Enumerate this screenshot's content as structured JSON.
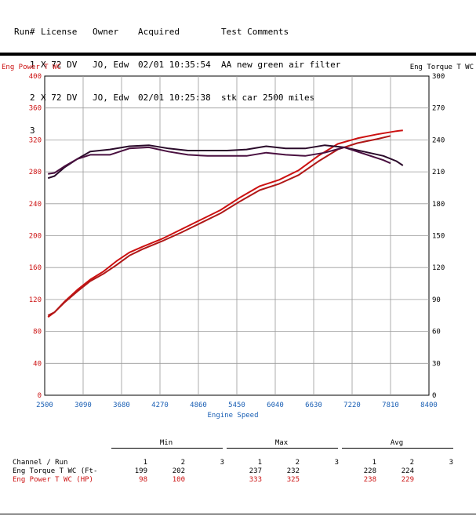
{
  "run_table": {
    "headers": {
      "run": "Run#",
      "license": "License",
      "owner": "Owner",
      "acquired": "Acquired",
      "comments": "Test Comments"
    },
    "rows": [
      {
        "run": "1",
        "license": "X 72 DV",
        "owner": "JO, Edw",
        "acquired": "02/01 10:35:54",
        "comments": "AA new green air filter"
      },
      {
        "run": "2",
        "license": "X 72 DV",
        "owner": "JO, Edw",
        "acquired": "02/01 10:25:38",
        "comments": "stk car 2500 miles"
      },
      {
        "run": "3",
        "license": "",
        "owner": "",
        "acquired": "",
        "comments": ""
      }
    ]
  },
  "colors": {
    "power": "#cc1111",
    "power2": "#b01818",
    "torque": "#2a0a2a",
    "torque2": "#4a1040",
    "axis_blue": "#1a5fb4"
  },
  "chart_data": {
    "type": "line",
    "left_axis_label": "Eng Power T WC",
    "right_axis_label": "Eng Torque T WC",
    "xlabel": "Engine Speed",
    "xlim": [
      2500,
      8400
    ],
    "x_ticks": [
      2500,
      3090,
      3680,
      4270,
      4860,
      5450,
      6040,
      6630,
      7220,
      7810,
      8400
    ],
    "ylim_left": [
      0,
      400
    ],
    "y_ticks_left": [
      0,
      40,
      80,
      120,
      160,
      200,
      240,
      280,
      320,
      360,
      400
    ],
    "ylim_right": [
      0,
      300
    ],
    "y_ticks_right": [
      0,
      30,
      60,
      90,
      120,
      150,
      180,
      210,
      240,
      270,
      300
    ],
    "series": [
      {
        "axis": "left",
        "color": "#cc1111",
        "x": [
          2550,
          2650,
          2800,
          3000,
          3200,
          3400,
          3600,
          3800,
          4000,
          4300,
          4600,
          4900,
          5200,
          5500,
          5800,
          6100,
          6400,
          6700,
          7000,
          7300,
          7600,
          7900,
          8000
        ],
        "y": [
          98,
          104,
          117,
          132,
          145,
          155,
          168,
          179,
          186,
          196,
          208,
          220,
          232,
          248,
          262,
          270,
          282,
          300,
          315,
          322,
          327,
          331,
          332
        ]
      },
      {
        "axis": "left",
        "color": "#b01818",
        "x": [
          2550,
          2650,
          2800,
          3000,
          3200,
          3400,
          3600,
          3800,
          4000,
          4300,
          4600,
          4900,
          5200,
          5500,
          5800,
          6100,
          6400,
          6700,
          7000,
          7300,
          7600,
          7810
        ],
        "y": [
          100,
          104,
          116,
          130,
          143,
          152,
          163,
          175,
          183,
          193,
          204,
          216,
          228,
          243,
          257,
          265,
          276,
          293,
          308,
          316,
          321,
          325
        ]
      },
      {
        "axis": "right",
        "color": "#2a0a2a",
        "x": [
          2550,
          2650,
          2800,
          3000,
          3200,
          3500,
          3800,
          4100,
          4400,
          4700,
          5000,
          5300,
          5600,
          5900,
          6200,
          6500,
          6800,
          7100,
          7400,
          7700,
          7900,
          8000
        ],
        "y": [
          204,
          206,
          214,
          222,
          229,
          231,
          234,
          235,
          232,
          230,
          230,
          230,
          231,
          234,
          232,
          232,
          235,
          233,
          229,
          225,
          220,
          216
        ]
      },
      {
        "axis": "right",
        "color": "#4a1040",
        "x": [
          2550,
          2650,
          2800,
          3000,
          3200,
          3500,
          3800,
          4100,
          4400,
          4700,
          5000,
          5300,
          5600,
          5900,
          6200,
          6500,
          6800,
          7100,
          7400,
          7700,
          7810
        ],
        "y": [
          208,
          209,
          215,
          222,
          226,
          226,
          232,
          233,
          229,
          226,
          225,
          225,
          225,
          228,
          226,
          225,
          228,
          233,
          227,
          221,
          218
        ]
      }
    ]
  },
  "stats": {
    "groups": [
      "Min",
      "Max",
      "Avg"
    ],
    "header_label": "Channel / Run",
    "run_cols": [
      "1",
      "2",
      "3"
    ],
    "rows": [
      {
        "label": "Eng Torque T WC (Ft-",
        "min": [
          "199",
          "202",
          ""
        ],
        "max": [
          "237",
          "232",
          ""
        ],
        "avg": [
          "228",
          "224",
          ""
        ]
      },
      {
        "label": "Eng Power T WC (HP)",
        "min": [
          "98",
          "100",
          ""
        ],
        "max": [
          "333",
          "325",
          ""
        ],
        "avg": [
          "238",
          "229",
          ""
        ]
      }
    ]
  }
}
